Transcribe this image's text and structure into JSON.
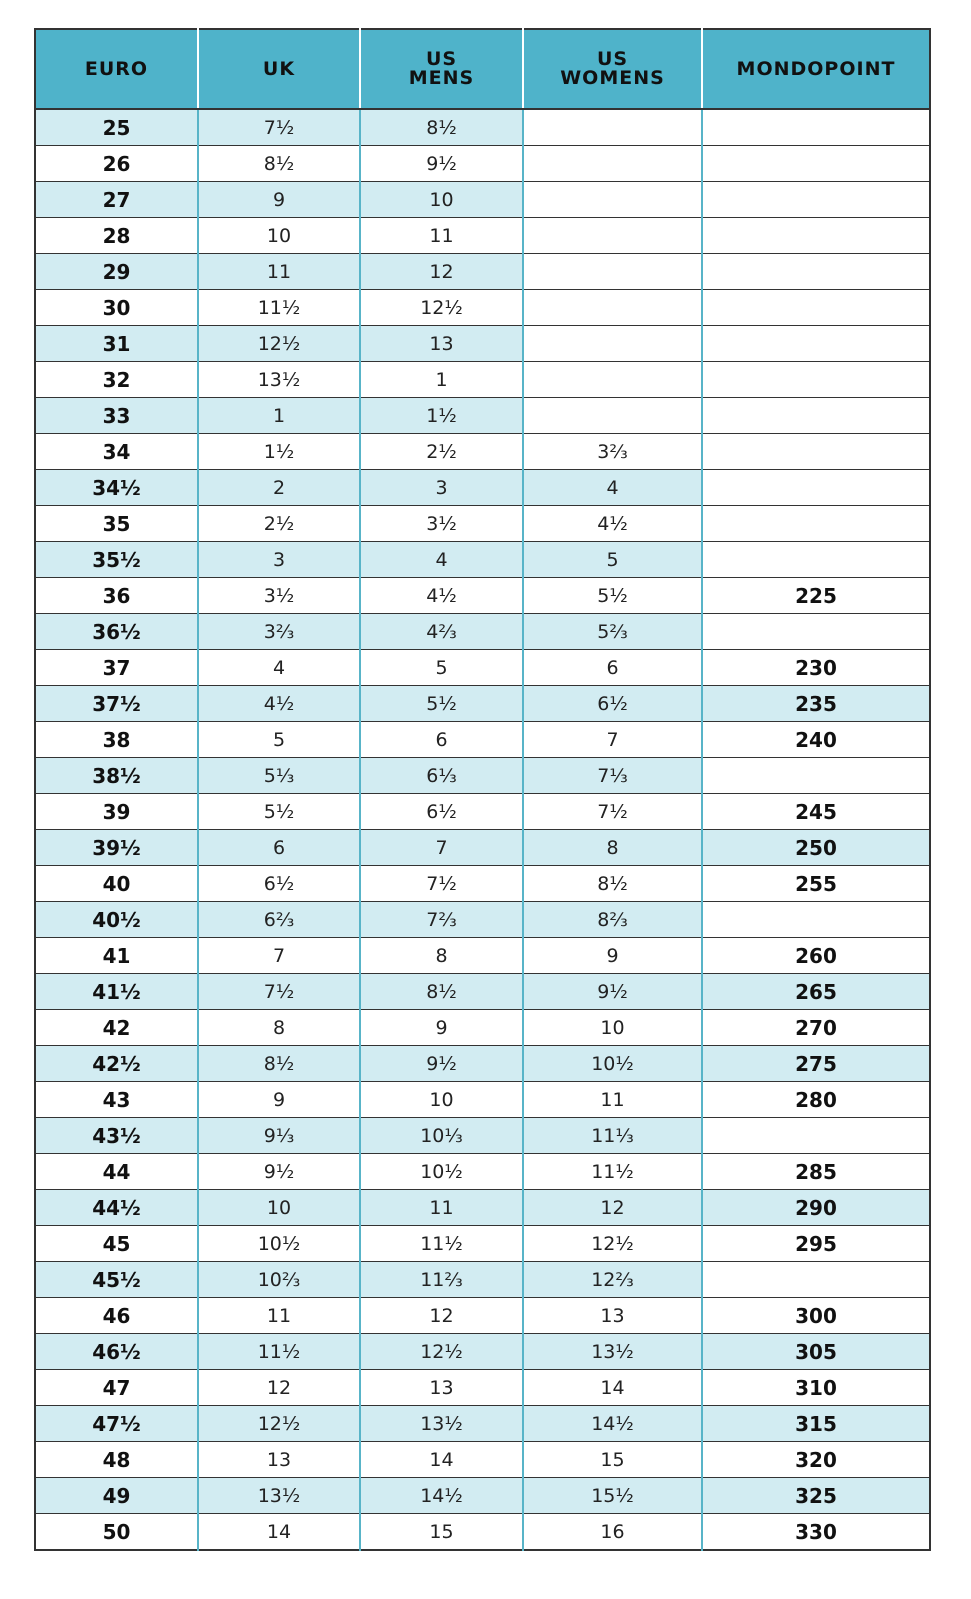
{
  "table": {
    "header": [
      "EURO",
      "UK",
      "US\nMENS",
      "US\nWOMENS",
      "MONDOPOINT"
    ],
    "rows": [
      [
        "25",
        "7½",
        "8½",
        null,
        null
      ],
      [
        "26",
        "8½",
        "9½",
        null,
        null
      ],
      [
        "27",
        "9",
        "10",
        null,
        null
      ],
      [
        "28",
        "10",
        "11",
        null,
        null
      ],
      [
        "29",
        "11",
        "12",
        null,
        null
      ],
      [
        "30",
        "11½",
        "12½",
        null,
        null
      ],
      [
        "31",
        "12½",
        "13",
        null,
        null
      ],
      [
        "32",
        "13½",
        "1",
        null,
        null
      ],
      [
        "33",
        "1",
        "1½",
        null,
        null
      ],
      [
        "34",
        "1½",
        "2½",
        "3⅔",
        null
      ],
      [
        "34½",
        "2",
        "3",
        "4",
        null
      ],
      [
        "35",
        "2½",
        "3½",
        "4½",
        null
      ],
      [
        "35½",
        "3",
        "4",
        "5",
        null
      ],
      [
        "36",
        "3½",
        "4½",
        "5½",
        "225"
      ],
      [
        "36½",
        "3⅔",
        "4⅔",
        "5⅔",
        null
      ],
      [
        "37",
        "4",
        "5",
        "6",
        "230"
      ],
      [
        "37½",
        "4½",
        "5½",
        "6½",
        "235"
      ],
      [
        "38",
        "5",
        "6",
        "7",
        "240"
      ],
      [
        "38½",
        "5⅓",
        "6⅓",
        "7⅓",
        null
      ],
      [
        "39",
        "5½",
        "6½",
        "7½",
        "245"
      ],
      [
        "39½",
        "6",
        "7",
        "8",
        "250"
      ],
      [
        "40",
        "6½",
        "7½",
        "8½",
        "255"
      ],
      [
        "40½",
        "6⅔",
        "7⅔",
        "8⅔",
        null
      ],
      [
        "41",
        "7",
        "8",
        "9",
        "260"
      ],
      [
        "41½",
        "7½",
        "8½",
        "9½",
        "265"
      ],
      [
        "42",
        "8",
        "9",
        "10",
        "270"
      ],
      [
        "42½",
        "8½",
        "9½",
        "10½",
        "275"
      ],
      [
        "43",
        "9",
        "10",
        "11",
        "280"
      ],
      [
        "43½",
        "9⅓",
        "10⅓",
        "11⅓",
        null
      ],
      [
        "44",
        "9½",
        "10½",
        "11½",
        "285"
      ],
      [
        "44½",
        "10",
        "11",
        "12",
        "290"
      ],
      [
        "45",
        "10½",
        "11½",
        "12½",
        "295"
      ],
      [
        "45½",
        "10⅔",
        "11⅔",
        "12⅔",
        null
      ],
      [
        "46",
        "11",
        "12",
        "13",
        "300"
      ],
      [
        "46½",
        "11½",
        "12½",
        "13½",
        "305"
      ],
      [
        "47",
        "12",
        "13",
        "14",
        "310"
      ],
      [
        "47½",
        "12½",
        "13½",
        "14½",
        "315"
      ],
      [
        "48",
        "13",
        "14",
        "15",
        "320"
      ],
      [
        "49",
        "13½",
        "14½",
        "15½",
        "325"
      ],
      [
        "50",
        "14",
        "15",
        "16",
        "330"
      ]
    ]
  }
}
